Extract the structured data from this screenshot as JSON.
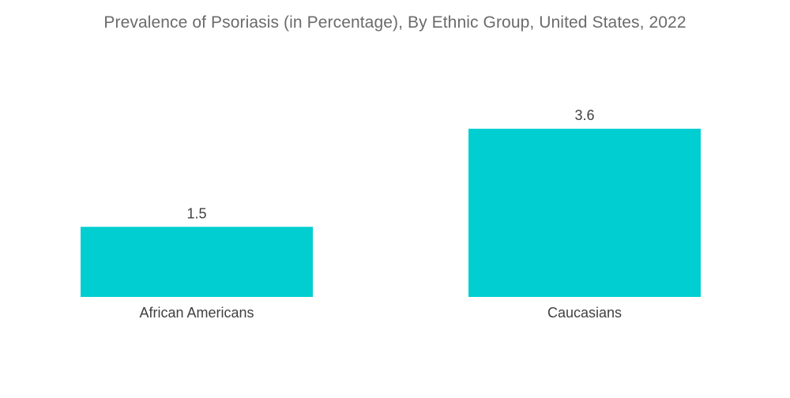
{
  "chart_data": {
    "type": "bar",
    "title": "Prevalence of Psoriasis (in Percentage), By Ethnic Group, United States, 2022",
    "categories": [
      "African Americans",
      "Caucasians"
    ],
    "values": [
      1.5,
      3.6
    ],
    "value_labels": [
      "1.5",
      "3.6"
    ],
    "xlabel": "",
    "ylabel": "",
    "ylim": [
      0,
      3.6
    ],
    "grid": false,
    "legend": "none",
    "bar_color": "#00CED1"
  }
}
